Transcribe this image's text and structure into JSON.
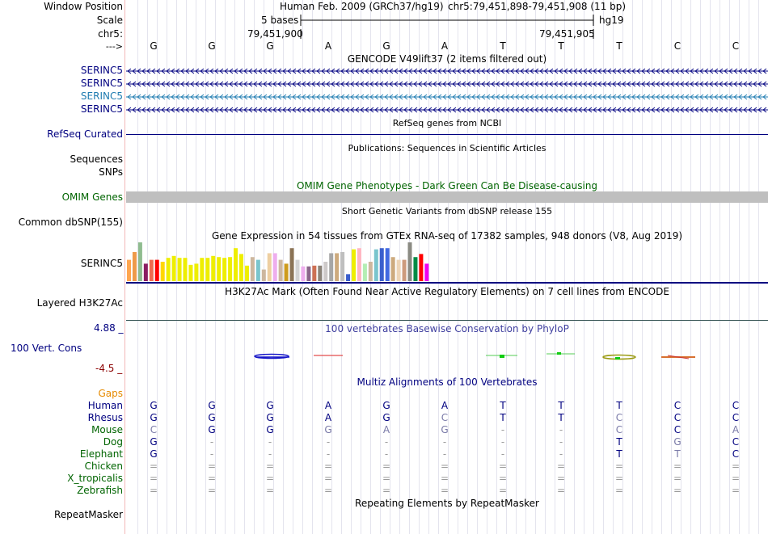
{
  "header": {
    "window_position_label": "Window Position",
    "scale_label": "Scale",
    "chr_label": "chr5:",
    "arrow_label": "--->",
    "assembly_text": "Human Feb. 2009 (GRCh37/hg19)",
    "position_text": "chr5:79,451,898-79,451,908 (11 bp)",
    "scale_text": "5 bases",
    "assembly_short": "hg19",
    "coord_left": "79,451,900",
    "coord_right": "79,451,905"
  },
  "reference_bases": [
    "G",
    "G",
    "G",
    "A",
    "G",
    "A",
    "T",
    "T",
    "T",
    "C",
    "C"
  ],
  "gencode": {
    "title": "GENCODE V49lift37 (2 items filtered out)",
    "tracks": [
      "SERINC5",
      "SERINC5",
      "SERINC5",
      "SERINC5"
    ]
  },
  "refseq": {
    "title": "RefSeq genes from NCBI",
    "label": "RefSeq Curated"
  },
  "publications": {
    "title": "Publications: Sequences in Scientific Articles",
    "label_line1": "Sequences",
    "label_line2": "SNPs"
  },
  "omim": {
    "title": "OMIM Gene Phenotypes - Dark Green Can Be Disease-causing",
    "label": "OMIM Genes"
  },
  "dbsnp": {
    "title": "Short Genetic Variants from dbSNP release 155",
    "label": "Common dbSNP(155)"
  },
  "gtex": {
    "title": "Gene Expression in 54 tissues from GTEx RNA-seq of 17382 samples, 948 donors (V8, Aug 2019)",
    "label": "SERINC5",
    "bars": [
      {
        "v": 0.55,
        "c": "#ffa54f"
      },
      {
        "v": 0.75,
        "c": "#ee9a49"
      },
      {
        "v": 1.0,
        "c": "#8fbc8f"
      },
      {
        "v": 0.45,
        "c": "#8b1c62"
      },
      {
        "v": 0.55,
        "c": "#ee6a50"
      },
      {
        "v": 0.55,
        "c": "#ff0000"
      },
      {
        "v": 0.5,
        "c": "#ffd700"
      },
      {
        "v": 0.6,
        "c": "#eeee00"
      },
      {
        "v": 0.65,
        "c": "#eeee00"
      },
      {
        "v": 0.6,
        "c": "#eeee00"
      },
      {
        "v": 0.6,
        "c": "#eeee00"
      },
      {
        "v": 0.42,
        "c": "#eeee00"
      },
      {
        "v": 0.45,
        "c": "#eeee00"
      },
      {
        "v": 0.6,
        "c": "#eeee00"
      },
      {
        "v": 0.6,
        "c": "#eeee00"
      },
      {
        "v": 0.65,
        "c": "#eeee00"
      },
      {
        "v": 0.62,
        "c": "#eeee00"
      },
      {
        "v": 0.6,
        "c": "#eeee00"
      },
      {
        "v": 0.62,
        "c": "#eeee00"
      },
      {
        "v": 0.85,
        "c": "#eeee00"
      },
      {
        "v": 0.7,
        "c": "#eeee00"
      },
      {
        "v": 0.4,
        "c": "#eeee00"
      },
      {
        "v": 0.62,
        "c": "#cdb79e"
      },
      {
        "v": 0.55,
        "c": "#7ac5cd"
      },
      {
        "v": 0.3,
        "c": "#cdb79e"
      },
      {
        "v": 0.72,
        "c": "#eecfa1"
      },
      {
        "v": 0.72,
        "c": "#eeaeee"
      },
      {
        "v": 0.55,
        "c": "#cdb79e"
      },
      {
        "v": 0.45,
        "c": "#cd9b1d"
      },
      {
        "v": 0.85,
        "c": "#8b7355"
      },
      {
        "v": 0.55,
        "c": "#d3d3d3"
      },
      {
        "v": 0.38,
        "c": "#eeaeee"
      },
      {
        "v": 0.38,
        "c": "#8b668b"
      },
      {
        "v": 0.4,
        "c": "#cd7054"
      },
      {
        "v": 0.4,
        "c": "#8b8378"
      },
      {
        "v": 0.5,
        "c": "#cdc9c9"
      },
      {
        "v": 0.72,
        "c": "#a6a6a6"
      },
      {
        "v": 0.72,
        "c": "#cdaa7d"
      },
      {
        "v": 0.75,
        "c": "#bfbfbf"
      },
      {
        "v": 0.18,
        "c": "#3a5fcd"
      },
      {
        "v": 0.82,
        "c": "#eeee00"
      },
      {
        "v": 0.85,
        "c": "#ffb6c1"
      },
      {
        "v": 0.45,
        "c": "#b4eeb4"
      },
      {
        "v": 0.5,
        "c": "#cdb79e"
      },
      {
        "v": 0.82,
        "c": "#7ac5cd"
      },
      {
        "v": 0.85,
        "c": "#3a5fcd"
      },
      {
        "v": 0.85,
        "c": "#4169e1"
      },
      {
        "v": 0.62,
        "c": "#cdaa7d"
      },
      {
        "v": 0.55,
        "c": "#eed5b7"
      },
      {
        "v": 0.55,
        "c": "#cd9b7d"
      },
      {
        "v": 1.0,
        "c": "#8b8b83"
      },
      {
        "v": 0.62,
        "c": "#008b45"
      },
      {
        "v": 0.7,
        "c": "#ff0000"
      },
      {
        "v": 0.45,
        "c": "#ee00ee"
      }
    ]
  },
  "h3k27ac": {
    "title": "H3K27Ac Mark (Often Found Near Active Regulatory Elements) on 7 cell lines from ENCODE",
    "label": "Layered H3K27Ac"
  },
  "phylop": {
    "title": "100 vertebrates Basewise Conservation by PhyloP",
    "label": "100 Vert. Cons",
    "max_label": "4.88 _",
    "min_label": "-4.5 _"
  },
  "multiz": {
    "title": "Multiz Alignments of 100 Vertebrates",
    "gaps_label": "Gaps",
    "species": [
      {
        "name": "Human",
        "color": "#000080",
        "bases": [
          "G",
          "G",
          "G",
          "A",
          "G",
          "A",
          "T",
          "T",
          "T",
          "C",
          "C"
        ],
        "match": [
          1,
          1,
          1,
          1,
          1,
          1,
          1,
          1,
          1,
          1,
          1
        ]
      },
      {
        "name": "Rhesus",
        "color": "#000080",
        "bases": [
          "G",
          "G",
          "G",
          "A",
          "G",
          "C",
          "T",
          "T",
          "C",
          "C",
          "C"
        ],
        "match": [
          1,
          1,
          1,
          1,
          1,
          0,
          1,
          1,
          0,
          1,
          1
        ]
      },
      {
        "name": "Mouse",
        "color": "#006400",
        "bases": [
          "C",
          "G",
          "G",
          "G",
          "A",
          "G",
          "-",
          "-",
          "C",
          "C",
          "A"
        ],
        "match": [
          0,
          1,
          1,
          0,
          0,
          0,
          2,
          2,
          0,
          1,
          0
        ]
      },
      {
        "name": "Dog",
        "color": "#006400",
        "bases": [
          "G",
          "-",
          "-",
          "-",
          "-",
          "-",
          "-",
          "-",
          "T",
          "G",
          "C"
        ],
        "match": [
          1,
          2,
          2,
          2,
          2,
          2,
          2,
          2,
          1,
          0,
          1
        ]
      },
      {
        "name": "Elephant",
        "color": "#006400",
        "bases": [
          "G",
          "-",
          "-",
          "-",
          "-",
          "-",
          "-",
          "-",
          "T",
          "T",
          "C"
        ],
        "match": [
          1,
          2,
          2,
          2,
          2,
          2,
          2,
          2,
          1,
          0,
          1
        ]
      },
      {
        "name": "Chicken",
        "color": "#006400",
        "bases": [
          "=",
          "=",
          "=",
          "=",
          "=",
          "=",
          "=",
          "=",
          "=",
          "=",
          "="
        ],
        "match": [
          2,
          2,
          2,
          2,
          2,
          2,
          2,
          2,
          2,
          2,
          2
        ]
      },
      {
        "name": "X_tropicalis",
        "color": "#006400",
        "bases": [
          "=",
          "=",
          "=",
          "=",
          "=",
          "=",
          "=",
          "=",
          "=",
          "=",
          "="
        ],
        "match": [
          2,
          2,
          2,
          2,
          2,
          2,
          2,
          2,
          2,
          2,
          2
        ]
      },
      {
        "name": "Zebrafish",
        "color": "#006400",
        "bases": [
          "=",
          "=",
          "=",
          "=",
          "=",
          "=",
          "=",
          "=",
          "=",
          "=",
          "="
        ],
        "match": [
          2,
          2,
          2,
          2,
          2,
          2,
          2,
          2,
          2,
          2,
          2
        ]
      }
    ]
  },
  "repeatmasker": {
    "title": "Repeating Elements by RepeatMasker",
    "label": "RepeatMasker"
  },
  "colors": {
    "navy": "#000080",
    "green": "#006400",
    "gaps": "#e68a00",
    "omim_bar": "#bfbfbf",
    "gencode_alt": "#1e7bb0"
  }
}
